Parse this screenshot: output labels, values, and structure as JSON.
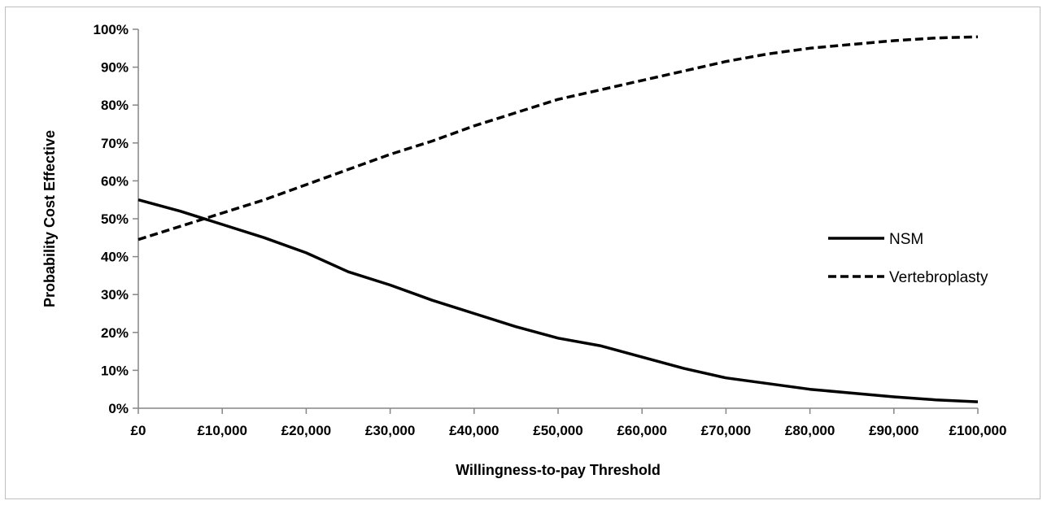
{
  "chart_data": {
    "type": "line",
    "title": "",
    "xlabel": "Willingness-to-pay Threshold",
    "ylabel": "Probability Cost Effective",
    "xlim": [
      0,
      100000
    ],
    "ylim": [
      0,
      100
    ],
    "x_ticks": [
      0,
      10000,
      20000,
      30000,
      40000,
      50000,
      60000,
      70000,
      80000,
      90000,
      100000
    ],
    "x_tick_labels": [
      "£0",
      "£10,000",
      "£20,000",
      "£30,000",
      "£40,000",
      "£50,000",
      "£60,000",
      "£70,000",
      "£80,000",
      "£90,000",
      "£100,000"
    ],
    "y_ticks": [
      0,
      10,
      20,
      30,
      40,
      50,
      60,
      70,
      80,
      90,
      100
    ],
    "y_tick_labels": [
      "0%",
      "10%",
      "20%",
      "30%",
      "40%",
      "50%",
      "60%",
      "70%",
      "80%",
      "90%",
      "100%"
    ],
    "grid": false,
    "legend_position": "right",
    "x": [
      0,
      5000,
      10000,
      15000,
      20000,
      25000,
      30000,
      35000,
      40000,
      45000,
      50000,
      55000,
      60000,
      65000,
      70000,
      75000,
      80000,
      85000,
      90000,
      95000,
      100000
    ],
    "series": [
      {
        "name": "NSM",
        "style": "solid",
        "color": "#000000",
        "values": [
          55,
          52,
          48.5,
          45,
          41,
          36,
          32.5,
          28.5,
          25,
          21.5,
          18.5,
          16.5,
          13.5,
          10.5,
          8,
          6.5,
          5,
          4,
          3,
          2.2,
          1.7
        ]
      },
      {
        "name": "Vertebroplasty",
        "style": "dashed",
        "color": "#000000",
        "values": [
          44.5,
          48,
          51.5,
          55,
          59,
          63,
          67,
          70.5,
          74.5,
          78,
          81.5,
          84,
          86.5,
          89,
          91.5,
          93.5,
          95,
          96,
          97,
          97.7,
          98
        ]
      }
    ]
  }
}
